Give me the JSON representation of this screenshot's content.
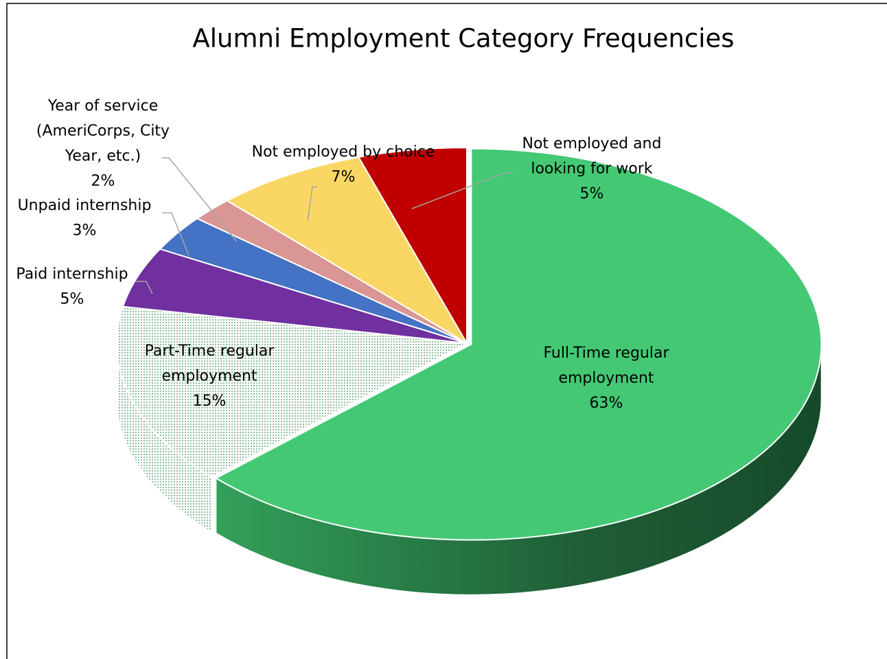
{
  "chart_data": {
    "type": "pie",
    "title": "Alumni Employment Category Frequencies",
    "categories": [
      "Full-Time regular employment",
      "Part-Time regular employment",
      "Paid internship",
      "Unpaid internship",
      "Year of service (AmeriCorps, City Year, etc.)",
      "Not employed by choice",
      "Not employed and looking for work"
    ],
    "values": [
      63,
      15,
      5,
      3,
      2,
      7,
      5
    ],
    "value_labels": [
      "63%",
      "15%",
      "5%",
      "3%",
      "2%",
      "7%",
      "5%"
    ],
    "colors": [
      "#44c874",
      "#6aa77a",
      "#7030a0",
      "#4472c4",
      "#d99694",
      "#fad764",
      "#c00000"
    ]
  }
}
